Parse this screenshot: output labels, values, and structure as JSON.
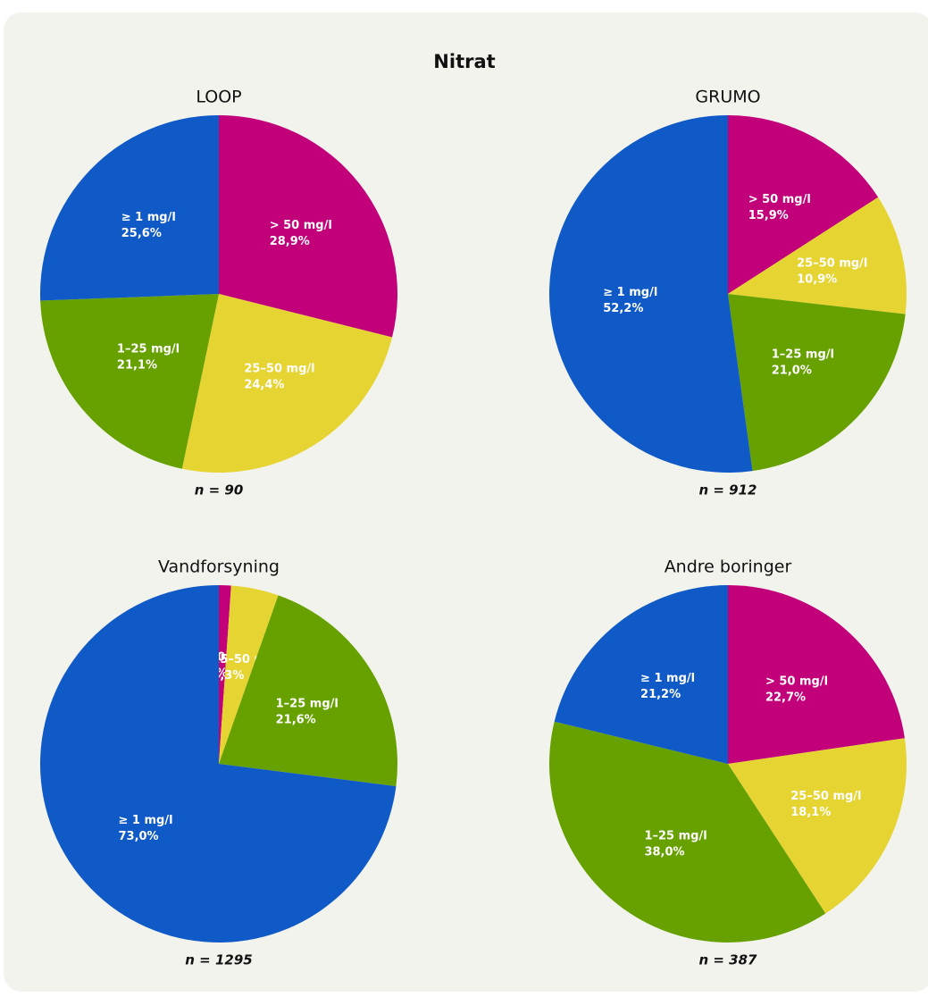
{
  "title": "Nitrat",
  "chart_data": [
    {
      "type": "pie",
      "title": "LOOP",
      "note": "n = 90",
      "categories": [
        "> 50 mg/l",
        "25–50 mg/l",
        "1–25 mg/l",
        "≥ 1 mg/l"
      ],
      "values": [
        28.9,
        24.4,
        21.1,
        25.6
      ],
      "value_labels": [
        "28,9%",
        "24,4%",
        "21,1%",
        "25,6%"
      ],
      "colors": [
        "#c1007a",
        "#e6d432",
        "#66a100",
        "#105ac8"
      ]
    },
    {
      "type": "pie",
      "title": "GRUMO",
      "note": "n = 912",
      "categories": [
        "> 50 mg/l",
        "25–50 mg/l",
        "1–25 mg/l",
        "≥ 1 mg/l"
      ],
      "values": [
        15.9,
        10.9,
        21.0,
        52.2
      ],
      "value_labels": [
        "15,9%",
        "10,9%",
        "21,0%",
        "52,2%"
      ],
      "colors": [
        "#c1007a",
        "#e6d432",
        "#66a100",
        "#105ac8"
      ]
    },
    {
      "type": "pie",
      "title": "Vandforsyning",
      "note": "n = 1295",
      "categories": [
        "> 50 mg/l",
        "25–50 mg/l",
        "1–25 mg/l",
        "≥ 1 mg/l"
      ],
      "values": [
        1.1,
        4.3,
        21.6,
        73.0
      ],
      "value_labels": [
        "1,1%",
        "4,3%",
        "21,6%",
        "73,0%"
      ],
      "colors": [
        "#c1007a",
        "#e6d432",
        "#66a100",
        "#105ac8"
      ]
    },
    {
      "type": "pie",
      "title": "Andre boringer",
      "note": "n = 387",
      "categories": [
        "> 50 mg/l",
        "25–50 mg/l",
        "1–25 mg/l",
        "≥ 1 mg/l"
      ],
      "values": [
        22.7,
        18.1,
        38.0,
        21.2
      ],
      "value_labels": [
        "22,7%",
        "18,1%",
        "38,0%",
        "21,2%"
      ],
      "colors": [
        "#c1007a",
        "#e6d432",
        "#66a100",
        "#105ac8"
      ]
    }
  ]
}
